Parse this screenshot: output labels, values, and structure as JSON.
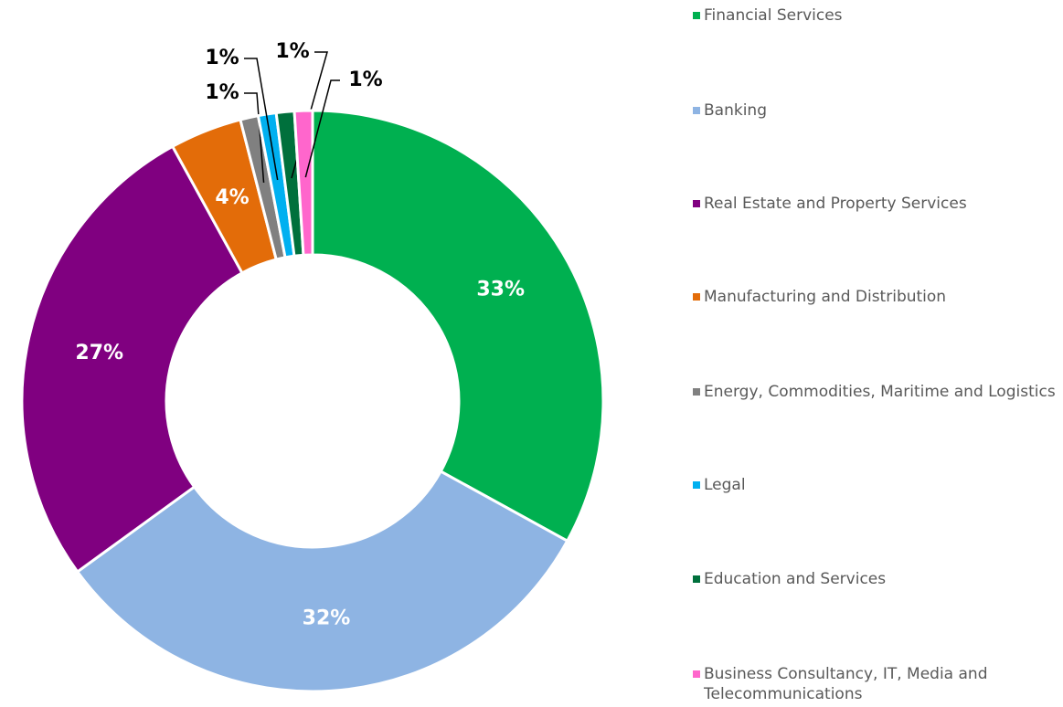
{
  "chart_data": {
    "type": "donut",
    "categories": [
      "Financial Services",
      "Banking",
      "Real Estate and Property Services",
      "Manufacturing and Distribution",
      "Energy, Commodities, Maritime and Logistics",
      "Legal",
      "Education and Services",
      "Business Consultancy, IT, Media and Telecommunications"
    ],
    "values": [
      33,
      32,
      27,
      4,
      1,
      1,
      1,
      1
    ],
    "value_labels": [
      "33%",
      "32%",
      "27%",
      "4%",
      "1%",
      "1%",
      "1%",
      "1%"
    ],
    "colors": [
      "#00b050",
      "#8eb4e3",
      "#800080",
      "#e36c09",
      "#808080",
      "#00b0f0",
      "#00703c",
      "#ff66cc"
    ],
    "legend": "right"
  }
}
